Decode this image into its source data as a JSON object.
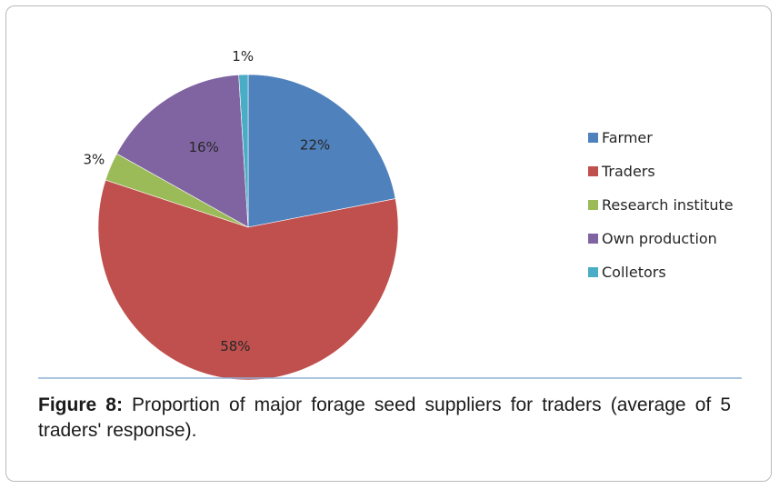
{
  "chart_data": {
    "type": "pie",
    "title": "",
    "categories": [
      "Farmer",
      "Traders",
      "Research institute",
      "Own production",
      "Colletors"
    ],
    "values": [
      22,
      58,
      3,
      16,
      1
    ],
    "labels": [
      "22%",
      "58%",
      "3%",
      "16%",
      "1%"
    ],
    "colors": [
      "#4f81bd",
      "#c0504d",
      "#9bbb59",
      "#8064a2",
      "#4bacc6"
    ],
    "legend_position": "right"
  },
  "caption": {
    "label": "Figure 8:",
    "text": " Proportion of major forage seed suppliers for traders (average of 5 traders' response)."
  }
}
